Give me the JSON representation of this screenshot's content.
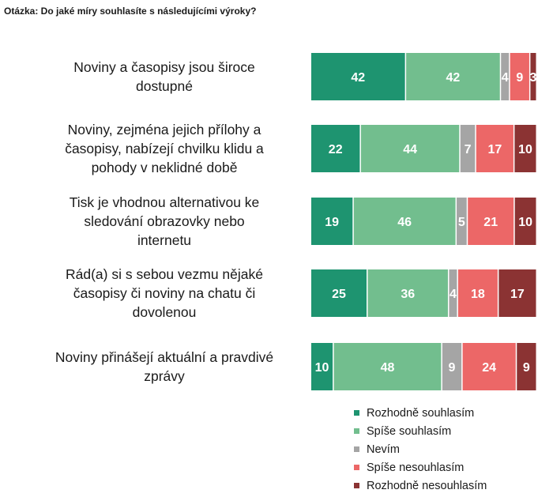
{
  "question": "Otázka: Do jaké míry souhlasíte s následujícími výroky?",
  "chart_data": {
    "type": "bar",
    "orientation": "horizontal",
    "stacked": true,
    "percent_stacked": true,
    "categories": [
      "Noviny a časopisy jsou široce dostupné",
      "Noviny, zejména jejich přílohy a časopisy, nabízejí chvilku klidu a pohody v neklidné době",
      "Tisk je vhodnou alternativou ke sledování obrazovky nebo internetu",
      "Rád(a) si s sebou vezmu nějaké časopisy či noviny na chatu či dovolenou",
      "Noviny přinášejí aktuální a pravdivé zprávy"
    ],
    "category_lines": [
      [
        "Noviny a časopisy jsou široce",
        "dostupné"
      ],
      [
        "Noviny, zejména jejich přílohy a",
        "časopisy, nabízejí chvilku klidu a",
        "pohody v neklidné době"
      ],
      [
        "Tisk je vhodnou alternativou ke",
        "sledování obrazovky nebo",
        "internetu"
      ],
      [
        "Rád(a) si s sebou vezmu nějaké",
        "časopisy či noviny na chatu či",
        "dovolenou"
      ],
      [
        "Noviny přinášejí aktuální a pravdivé",
        "zprávy"
      ]
    ],
    "series": [
      {
        "name": "Rozhodně souhlasím",
        "color": "#1e9470",
        "values": [
          42,
          22,
          19,
          25,
          10
        ]
      },
      {
        "name": "Spíše souhlasím",
        "color": "#72be8e",
        "values": [
          42,
          44,
          46,
          36,
          48
        ]
      },
      {
        "name": "Nevím",
        "color": "#a5a5a5",
        "values": [
          4,
          7,
          5,
          4,
          9
        ]
      },
      {
        "name": "Spíše nesouhlasím",
        "color": "#ec6767",
        "values": [
          9,
          17,
          21,
          18,
          24
        ]
      },
      {
        "name": "Rozhodně nesouhlasím",
        "color": "#8b3333",
        "values": [
          3,
          10,
          10,
          17,
          9
        ]
      }
    ],
    "data_labels": [
      [
        "42",
        "42",
        "4",
        "9",
        "3"
      ],
      [
        "22",
        "44",
        "7",
        "17",
        "10"
      ],
      [
        "19",
        "46",
        "5",
        "21",
        "10"
      ],
      [
        "25",
        "36",
        "4",
        "18",
        "17"
      ],
      [
        "10",
        "48",
        "9",
        "24",
        "9"
      ]
    ],
    "legend_position": "bottom-right",
    "grid": false
  }
}
